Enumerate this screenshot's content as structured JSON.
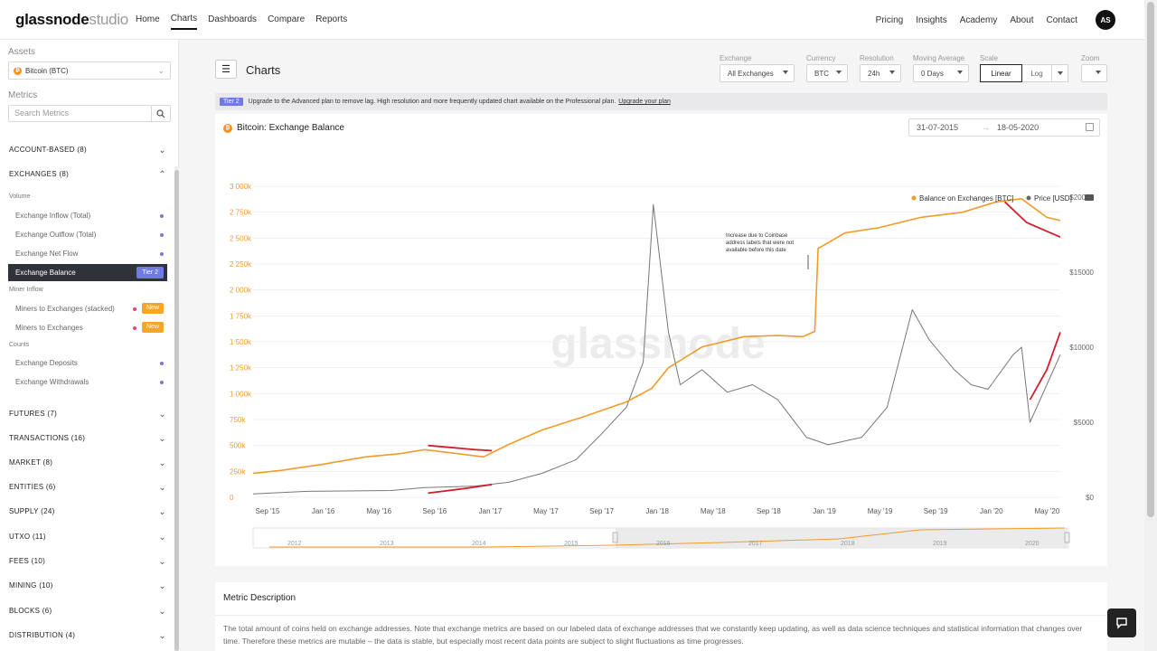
{
  "brand": {
    "bold": "glassnode",
    "light": "studio"
  },
  "nav": {
    "links": [
      "Home",
      "Charts",
      "Dashboards",
      "Compare",
      "Reports"
    ],
    "active": "Charts",
    "right": [
      "Pricing",
      "Insights",
      "Academy",
      "About",
      "Contact"
    ],
    "avatar": "AS"
  },
  "sidebar": {
    "assets_label": "Assets",
    "asset_selected": "Bitcoin (BTC)",
    "metrics_label": "Metrics",
    "search_placeholder": "Search Metrics",
    "cat_account": "ACCOUNT-BASED (8)",
    "cat_exchanges": "EXCHANGES (8)",
    "sub_volume": "Volume",
    "m_inflow": "Exchange Inflow (Total)",
    "m_outflow": "Exchange Outflow (Total)",
    "m_netflow": "Exchange Net Flow",
    "m_balance": "Exchange Balance",
    "tier_badge": "Tier 2",
    "sub_miner": "Miner Inflow",
    "m_miners_stacked": "Miners to Exchanges (stacked)",
    "m_miners": "Miners to Exchanges",
    "new_badge": "New",
    "sub_counts": "Counts",
    "m_deposits": "Exchange Deposits",
    "m_withdrawals": "Exchange Withdrawals",
    "categories": [
      "FUTURES (7)",
      "TRANSACTIONS (16)",
      "MARKET (8)",
      "ENTITIES (6)",
      "SUPPLY (24)",
      "UTXO (11)",
      "FEES (10)",
      "MINING (10)",
      "BLOCKS (6)",
      "DISTRIBUTION (4)"
    ]
  },
  "main": {
    "title": "Charts",
    "controls": {
      "exchange_label": "Exchange",
      "exchange_value": "All Exchanges",
      "currency_label": "Currency",
      "currency_value": "BTC",
      "resolution_label": "Resolution",
      "resolution_value": "24h",
      "ma_label": "Moving Average",
      "ma_value": "0 Days",
      "scale_label": "Scale",
      "scale_linear": "Linear",
      "scale_log": "Log",
      "zoom_label": "Zoom"
    },
    "tier_bar": {
      "badge": "Tier 2",
      "text": "Upgrade to the Advanced plan to remove lag. High resolution and more frequently updated chart available on the Professional plan.",
      "link": "Upgrade your plan"
    },
    "chart_title": "Bitcoin: Exchange Balance",
    "date_from": "31-07-2015",
    "date_to": "18-05-2020"
  },
  "chart_data": {
    "type": "line",
    "watermark": "glassnode",
    "legend": [
      "Balance on Exchanges [BTC]",
      "Price [USD]"
    ],
    "legend_placement": "top-right",
    "y_left_ticks": [
      "0",
      "250k",
      "500k",
      "750k",
      "1 000k",
      "1 250k",
      "1 500k",
      "1 750k",
      "2 000k",
      "2 250k",
      "2 500k",
      "2 750k",
      "3 000k"
    ],
    "y_right_ticks": [
      "$0",
      "$5000",
      "$10000",
      "$15000",
      "$20000"
    ],
    "x_ticks": [
      "Sep '15",
      "Jan '16",
      "May '16",
      "Sep '16",
      "Jan '17",
      "May '17",
      "Sep '17",
      "Jan '18",
      "May '18",
      "Sep '18",
      "Jan '19",
      "May '19",
      "Sep '19",
      "Jan '20",
      "May '20"
    ],
    "navigator_years": [
      "2012",
      "2013",
      "2014",
      "2015",
      "2016",
      "2017",
      "2018",
      "2019",
      "2020"
    ],
    "annotation": [
      "Increase due to Coinbase",
      "address labels that were not",
      "available before this date"
    ],
    "balance_btc": [
      [
        2015.58,
        230000
      ],
      [
        2015.75,
        260000
      ],
      [
        2016.0,
        320000
      ],
      [
        2016.25,
        390000
      ],
      [
        2016.45,
        420000
      ],
      [
        2016.6,
        460000
      ],
      [
        2016.8,
        420000
      ],
      [
        2016.95,
        390000
      ],
      [
        2017.1,
        510000
      ],
      [
        2017.3,
        650000
      ],
      [
        2017.55,
        780000
      ],
      [
        2017.8,
        920000
      ],
      [
        2017.95,
        1050000
      ],
      [
        2018.05,
        1250000
      ],
      [
        2018.25,
        1450000
      ],
      [
        2018.5,
        1550000
      ],
      [
        2018.7,
        1560000
      ],
      [
        2018.85,
        1550000
      ],
      [
        2018.92,
        1600000
      ],
      [
        2018.94,
        2400000
      ],
      [
        2019.1,
        2550000
      ],
      [
        2019.3,
        2600000
      ],
      [
        2019.55,
        2700000
      ],
      [
        2019.8,
        2750000
      ],
      [
        2020.0,
        2850000
      ],
      [
        2020.15,
        2880000
      ],
      [
        2020.3,
        2700000
      ],
      [
        2020.38,
        2670000
      ]
    ],
    "price_usd": [
      [
        2015.58,
        230
      ],
      [
        2015.9,
        400
      ],
      [
        2016.4,
        450
      ],
      [
        2016.6,
        650
      ],
      [
        2016.9,
        750
      ],
      [
        2017.1,
        1000
      ],
      [
        2017.3,
        1600
      ],
      [
        2017.5,
        2500
      ],
      [
        2017.65,
        4200
      ],
      [
        2017.8,
        6000
      ],
      [
        2017.9,
        9000
      ],
      [
        2017.96,
        19500
      ],
      [
        2018.05,
        11000
      ],
      [
        2018.12,
        7500
      ],
      [
        2018.25,
        8500
      ],
      [
        2018.4,
        7000
      ],
      [
        2018.55,
        7500
      ],
      [
        2018.7,
        6500
      ],
      [
        2018.87,
        4000
      ],
      [
        2019.0,
        3500
      ],
      [
        2019.2,
        4000
      ],
      [
        2019.35,
        6000
      ],
      [
        2019.5,
        12500
      ],
      [
        2019.6,
        10500
      ],
      [
        2019.75,
        8500
      ],
      [
        2019.85,
        7500
      ],
      [
        2019.95,
        7200
      ],
      [
        2020.1,
        9500
      ],
      [
        2020.15,
        10000
      ],
      [
        2020.2,
        5000
      ],
      [
        2020.3,
        7500
      ],
      [
        2020.38,
        9500
      ]
    ],
    "highlight_balance": [
      [
        2016.62,
        500000
      ],
      [
        2016.9,
        460000
      ],
      [
        2017.0,
        450000
      ]
    ],
    "highlight_price": [
      [
        2016.62,
        280
      ],
      [
        2016.85,
        600
      ],
      [
        2017.0,
        850
      ]
    ],
    "highlight_balance_2020": [
      [
        2020.05,
        2850000
      ],
      [
        2020.18,
        2650000
      ],
      [
        2020.38,
        2510000
      ]
    ],
    "highlight_price_2020": [
      [
        2020.2,
        6500
      ],
      [
        2020.3,
        8500
      ],
      [
        2020.38,
        11000
      ]
    ]
  },
  "description": {
    "title": "Metric Description",
    "text": "The total amount of coins held on exchange addresses. Note that exchange metrics are based on our labeled data of exchange addresses that we constantly keep updating, as well as data science techniques and statistical information that changes over time. Therefore these metrics are mutable – the data is stable, but especially most recent data points are subject to slight fluctuations as time progresses."
  },
  "colors": {
    "balance": "#f29b2b",
    "price": "#777777",
    "highlight": "#d0202e",
    "tier": "#6f7be3",
    "new": "#f5a623"
  }
}
